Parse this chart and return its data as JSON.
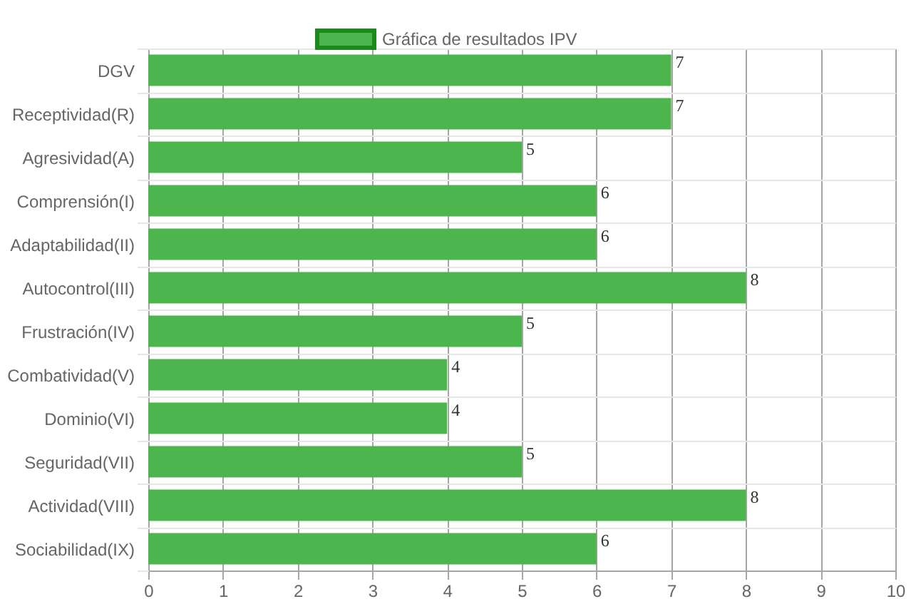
{
  "chart_data": {
    "type": "bar",
    "orientation": "horizontal",
    "categories": [
      "DGV",
      "Receptividad(R)",
      "Agresividad(A)",
      "Comprensión(I)",
      "Adaptabilidad(II)",
      "Autocontrol(III)",
      "Frustración(IV)",
      "Combatividad(V)",
      "Dominio(VI)",
      "Seguridad(VII)",
      "Actividad(VIII)",
      "Sociabilidad(IX)"
    ],
    "series": [
      {
        "name": "Gráfica de resultados IPV",
        "color": "#4db54d",
        "values": [
          7,
          7,
          5,
          6,
          6,
          8,
          5,
          4,
          4,
          5,
          8,
          6
        ]
      }
    ],
    "xlim": [
      0,
      10
    ],
    "xticks": [
      0,
      1,
      2,
      3,
      4,
      5,
      6,
      7,
      8,
      9,
      10
    ],
    "grid": true,
    "legend": "top",
    "data_labels": true
  }
}
